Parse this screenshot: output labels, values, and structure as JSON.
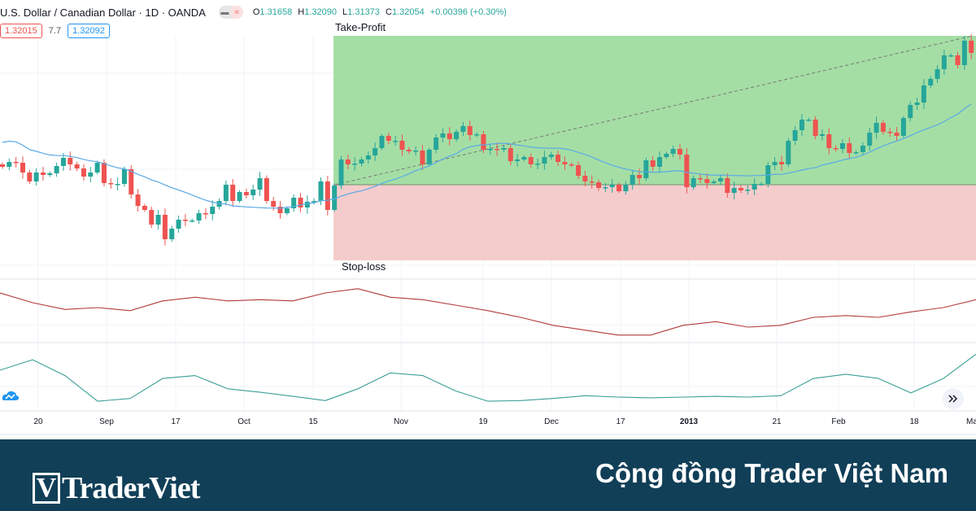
{
  "header": {
    "title": "U.S. Dollar / Canadian Dollar · 1D · OANDA",
    "toggle_icons": [
      "minus-icon",
      "approx-icon"
    ],
    "ohlc": {
      "o_label": "O",
      "o": "1.31658",
      "h_label": "H",
      "h": "1.32090",
      "l_label": "L",
      "l": "1.31373",
      "c_label": "C",
      "c": "1.32054",
      "change": "+0.00396 (+0.30%)"
    },
    "sell_price": "1.32015",
    "spread": "7.7",
    "buy_price": "1.32092"
  },
  "colors": {
    "up": "#26a69a",
    "down": "#ef5350",
    "ma": "#5aa9e6",
    "profit_zone": "#a5dea5",
    "loss_zone": "#f5cccc",
    "osc1": "#b23a3a",
    "osc2": "#3a9e96",
    "banner": "#113f58"
  },
  "chart_data": {
    "type": "candlestick",
    "timeframe": "1D",
    "closes": [
      1.2887,
      1.2899,
      1.2897,
      1.2873,
      1.2851,
      1.2873,
      1.2867,
      1.2871,
      1.2889,
      1.2909,
      1.2893,
      1.2883,
      1.2863,
      1.2873,
      1.2897,
      1.2847,
      1.2845,
      1.2845,
      1.2881,
      1.2819,
      1.2791,
      1.2781,
      1.2745,
      1.2769,
      1.2709,
      1.2735,
      1.2757,
      1.2755,
      1.2755,
      1.2773,
      1.2771,
      1.2789,
      1.2803,
      1.2843,
      1.2803,
      1.2825,
      1.2817,
      1.2831,
      1.2859,
      1.2803,
      1.2789,
      1.2773,
      1.2785,
      1.2811,
      1.2787,
      1.2801,
      1.2803,
      1.2851,
      1.2781,
      1.2841,
      1.2905,
      1.2893,
      1.2895,
      1.2905,
      1.2915,
      1.2933,
      1.2963,
      1.2951,
      1.2951,
      1.2929,
      1.2925,
      1.2927,
      1.2893,
      1.2929,
      1.2959,
      1.2969,
      1.2955,
      1.2973,
      1.2987,
      1.2965,
      1.2967,
      1.2929,
      1.2931,
      1.2929,
      1.2933,
      1.2901,
      1.2905,
      1.2911,
      1.2893,
      1.2895,
      1.2911,
      1.2917,
      1.2899,
      1.2893,
      1.2891,
      1.2865,
      1.2851,
      1.2849,
      1.2835,
      1.2837,
      1.2843,
      1.2827,
      1.2843,
      1.2867,
      1.2859,
      1.2903,
      1.2887,
      1.2911,
      1.2919,
      1.2931,
      1.2917,
      1.2837,
      1.2859,
      1.2857,
      1.2847,
      1.2851,
      1.2859,
      1.2823,
      1.2835,
      1.2829,
      1.2831,
      1.2845,
      1.2845,
      1.2891,
      1.2899,
      1.2893,
      1.2951,
      1.2977,
      1.3003,
      1.3003,
      1.2963,
      1.2967,
      1.2933,
      1.2931,
      1.2945,
      1.2921,
      1.2923,
      1.2939,
      1.2971,
      1.2995,
      1.2973,
      1.2971,
      1.2963,
      1.3007,
      1.3039,
      1.3045,
      1.3087,
      1.3103,
      1.3127,
      1.3161,
      1.3161,
      1.3137,
      1.3197,
      1.3167
    ],
    "position": {
      "take_profit": 1.3209,
      "entry": 1.2843,
      "stop_loss": 1.2657,
      "take_profit_label": "Take-Profit",
      "stop_loss_label": "Stop-loss"
    },
    "moving_average": true,
    "x_tick_labels": [
      "20",
      "Sep",
      "17",
      "Oct",
      "15",
      "Nov",
      "19",
      "Dec",
      "17",
      "2013",
      "21",
      "Feb",
      "18",
      "Ma"
    ],
    "oscillator_1": [
      80,
      64,
      53,
      56,
      51,
      67,
      73,
      67,
      69,
      67,
      80,
      87,
      73,
      69,
      60,
      51,
      40,
      27,
      19,
      11,
      11,
      27,
      33,
      24,
      27,
      40,
      43,
      40,
      49,
      56,
      69
    ],
    "oscillator_2": [
      59,
      74,
      51,
      14,
      18,
      47,
      51,
      32,
      27,
      21,
      15,
      32,
      55,
      51,
      29,
      14,
      15,
      18,
      22,
      20,
      19,
      20,
      21,
      20,
      22,
      47,
      53,
      47,
      26,
      47,
      82
    ],
    "grid": true
  },
  "footer": {
    "logo_text": "TraderViet",
    "tagline": "Cộng đồng Trader Việt Nam"
  }
}
